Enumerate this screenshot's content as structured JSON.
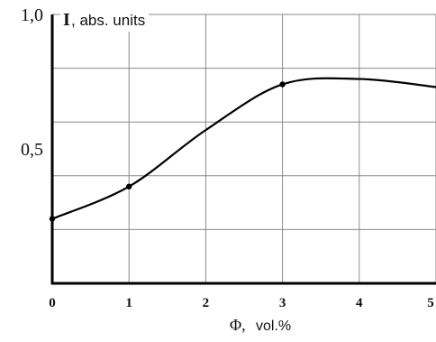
{
  "chart_data": {
    "type": "line",
    "title": "",
    "xlabel": {
      "symbol": "Φ,",
      "unit": "vol.%"
    },
    "ylabel": {
      "symbol": "I",
      "unit": ", abs. units"
    },
    "xlim": [
      0,
      5
    ],
    "ylim": [
      0,
      1.0
    ],
    "x_ticks": [
      0,
      1,
      2,
      3,
      4,
      5
    ],
    "x_tick_labels": [
      "0",
      "1",
      "2",
      "3",
      "4",
      "5"
    ],
    "y_ticks": [
      0.2,
      0.4,
      0.6,
      0.8,
      1.0
    ],
    "y_tick_labels": [
      {
        "value": 0.5,
        "label": "0,5"
      },
      {
        "value": 1.0,
        "label": "1,0"
      }
    ],
    "grid": true,
    "series": [
      {
        "x": [
          0,
          1,
          2,
          3,
          4,
          5
        ],
        "y": [
          0.24,
          0.36,
          0.57,
          0.74,
          0.76,
          0.73
        ],
        "color": "#000000",
        "markers_at_x": [
          0,
          1,
          3
        ]
      }
    ]
  }
}
